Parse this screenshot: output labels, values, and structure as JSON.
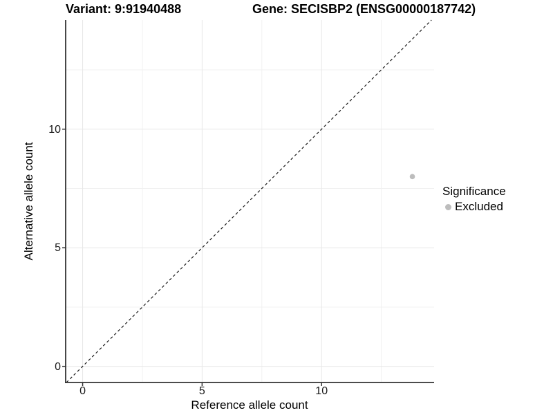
{
  "figure": {
    "title_left": "Variant: 9:91940488",
    "title_right": "Gene: SECISBP2 (ENSG00000187742)"
  },
  "chart_data": {
    "type": "scatter",
    "title": "Variant: 9:91940488  /  Gene: SECISBP2 (ENSG00000187742)",
    "xlabel": "Reference allele count",
    "ylabel": "Alternative allele count",
    "xlim": [
      -0.71,
      14.71
    ],
    "ylim": [
      -0.68,
      14.6
    ],
    "x_ticks": [
      0,
      5,
      10
    ],
    "y_ticks": [
      0,
      5,
      10
    ],
    "x_minor_ticks": [
      2.5,
      7.5,
      12.5
    ],
    "y_minor_ticks": [
      2.5,
      7.5,
      12.5
    ],
    "grid": true,
    "points": [
      {
        "x": 13.8,
        "y": 8,
        "significance": "Excluded"
      }
    ],
    "reference_line": {
      "kind": "identity",
      "style": "dashed"
    },
    "legend": {
      "title": "Significance",
      "position": "right",
      "entries": [
        {
          "label": "Excluded",
          "color": "#bdbdbd"
        }
      ]
    }
  },
  "colors": {
    "background": "#ffffff",
    "grid_major": "#e7e7e7",
    "grid_minor": "#f1f1f1",
    "axis_line": "#333333",
    "tick_mark": "#333333",
    "dashed_line": "#1a1a1a",
    "point": "#bdbdbd",
    "text": "#000000"
  }
}
